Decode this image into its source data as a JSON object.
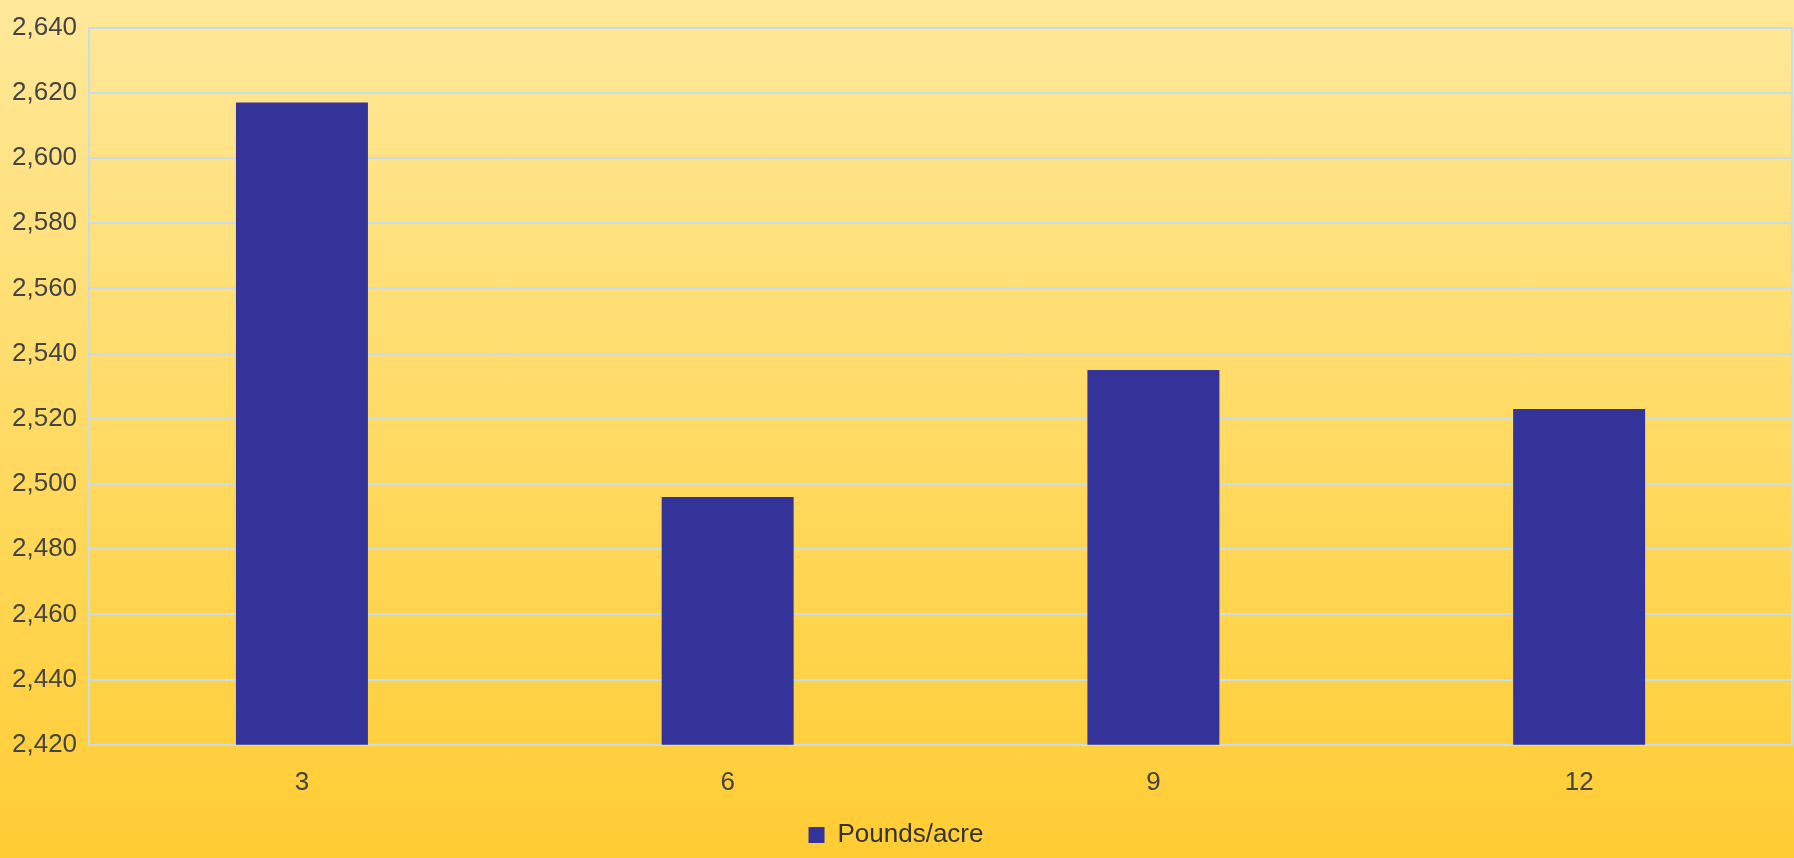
{
  "chart_data": {
    "type": "bar",
    "categories": [
      "3",
      "6",
      "9",
      "12"
    ],
    "series": [
      {
        "name": "Pounds/acre",
        "color": "#333399",
        "values": [
          2617,
          2496,
          2535,
          2523
        ]
      }
    ],
    "ylim": [
      2420,
      2640
    ],
    "yticks": [
      {
        "value": 2420,
        "label": "2,420"
      },
      {
        "value": 2440,
        "label": "2,440"
      },
      {
        "value": 2460,
        "label": "2,460"
      },
      {
        "value": 2480,
        "label": "2,480"
      },
      {
        "value": 2500,
        "label": "2,500"
      },
      {
        "value": 2520,
        "label": "2,520"
      },
      {
        "value": 2540,
        "label": "2,540"
      },
      {
        "value": 2560,
        "label": "2,560"
      },
      {
        "value": 2580,
        "label": "2,580"
      },
      {
        "value": 2600,
        "label": "2,600"
      },
      {
        "value": 2620,
        "label": "2,620"
      },
      {
        "value": 2640,
        "label": "2,640"
      }
    ],
    "grid": "y",
    "legend": "bottom"
  }
}
